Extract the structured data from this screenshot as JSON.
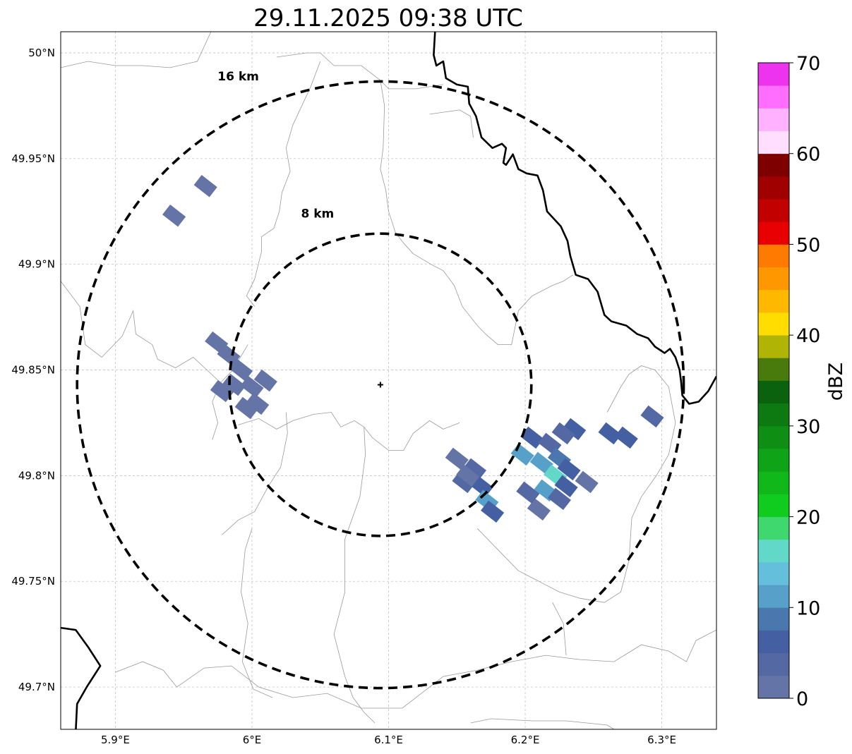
{
  "title": "29.11.2025 09:38 UTC",
  "map": {
    "lon_range": [
      5.86,
      6.34
    ],
    "lat_range": [
      49.68,
      50.01
    ],
    "x_ticks": [
      {
        "value": 5.9,
        "label": "5.9°E"
      },
      {
        "value": 6.0,
        "label": "6°E"
      },
      {
        "value": 6.1,
        "label": "6.1°E"
      },
      {
        "value": 6.2,
        "label": "6.2°E"
      },
      {
        "value": 6.3,
        "label": "6.3°E"
      }
    ],
    "y_ticks": [
      {
        "value": 50.0,
        "label": "50°N"
      },
      {
        "value": 49.95,
        "label": "49.95°N"
      },
      {
        "value": 49.9,
        "label": "49.9°N"
      },
      {
        "value": 49.85,
        "label": "49.85°N"
      },
      {
        "value": 49.8,
        "label": "49.8°N"
      },
      {
        "value": 49.75,
        "label": "49.75°N"
      },
      {
        "value": 49.7,
        "label": "49.7°N"
      }
    ],
    "grid": true,
    "radar_site": {
      "lon": 6.094,
      "lat": 49.843
    },
    "range_rings": [
      {
        "label": "8 km",
        "lon_radius": 0.1105,
        "lat_radius": 0.0715,
        "label_lon": 6.048,
        "label_lat": 49.922
      },
      {
        "label": "16 km",
        "lon_radius": 0.222,
        "lat_radius": 0.1435,
        "label_lon": 5.99,
        "label_lat": 49.987
      }
    ],
    "border_color": "#000000",
    "boundary_color": "#999999"
  },
  "colorbar": {
    "label": "dBZ",
    "min": 0,
    "max": 70,
    "step": 2.5,
    "ticks": [
      0,
      10,
      20,
      30,
      40,
      50,
      60,
      70
    ],
    "colors": [
      "#6474a6",
      "#5469a3",
      "#4460a2",
      "#4a78ae",
      "#57a0c9",
      "#63bfdc",
      "#62d8c9",
      "#3ed86e",
      "#10cc1e",
      "#10b81a",
      "#0fa417",
      "#0e8f14",
      "#0c7a11",
      "#0a620e",
      "#487b0b",
      "#b0b405",
      "#ffdd00",
      "#ffb800",
      "#ff9800",
      "#ff7a00",
      "#e80000",
      "#c20000",
      "#a00000",
      "#7f0000",
      "#ffdeff",
      "#ffb2ff",
      "#ff6eff",
      "#ee33ee"
    ]
  },
  "echoes": [
    {
      "lon": 5.966,
      "lat": 49.937,
      "dbz": 1
    },
    {
      "lon": 5.943,
      "lat": 49.923,
      "dbz": 1
    },
    {
      "lon": 5.974,
      "lat": 49.863,
      "dbz": 1
    },
    {
      "lon": 5.983,
      "lat": 49.857,
      "dbz": 1
    },
    {
      "lon": 5.992,
      "lat": 49.85,
      "dbz": 2
    },
    {
      "lon": 5.987,
      "lat": 49.843,
      "dbz": 1
    },
    {
      "lon": 6.0,
      "lat": 49.842,
      "dbz": 1
    },
    {
      "lon": 6.004,
      "lat": 49.834,
      "dbz": 1
    },
    {
      "lon": 5.978,
      "lat": 49.84,
      "dbz": 2
    },
    {
      "lon": 5.996,
      "lat": 49.832,
      "dbz": 1
    },
    {
      "lon": 6.01,
      "lat": 49.845,
      "dbz": 1
    },
    {
      "lon": 6.15,
      "lat": 49.808,
      "dbz": 2
    },
    {
      "lon": 6.163,
      "lat": 49.803,
      "dbz": 3
    },
    {
      "lon": 6.155,
      "lat": 49.797,
      "dbz": 4
    },
    {
      "lon": 6.168,
      "lat": 49.795,
      "dbz": 5
    },
    {
      "lon": 6.172,
      "lat": 49.788,
      "dbz": 10
    },
    {
      "lon": 6.176,
      "lat": 49.783,
      "dbz": 6
    },
    {
      "lon": 6.158,
      "lat": 49.8,
      "dbz": 1
    },
    {
      "lon": 6.205,
      "lat": 49.818,
      "dbz": 5
    },
    {
      "lon": 6.218,
      "lat": 49.815,
      "dbz": 4
    },
    {
      "lon": 6.225,
      "lat": 49.808,
      "dbz": 8
    },
    {
      "lon": 6.212,
      "lat": 49.806,
      "dbz": 12
    },
    {
      "lon": 6.222,
      "lat": 49.8,
      "dbz": 16
    },
    {
      "lon": 6.232,
      "lat": 49.803,
      "dbz": 6
    },
    {
      "lon": 6.215,
      "lat": 49.793,
      "dbz": 10
    },
    {
      "lon": 6.225,
      "lat": 49.789,
      "dbz": 4
    },
    {
      "lon": 6.21,
      "lat": 49.784,
      "dbz": 2
    },
    {
      "lon": 6.202,
      "lat": 49.792,
      "dbz": 3
    },
    {
      "lon": 6.236,
      "lat": 49.822,
      "dbz": 6
    },
    {
      "lon": 6.228,
      "lat": 49.82,
      "dbz": 3
    },
    {
      "lon": 6.245,
      "lat": 49.797,
      "dbz": 2
    },
    {
      "lon": 6.198,
      "lat": 49.81,
      "dbz": 11
    },
    {
      "lon": 6.23,
      "lat": 49.795,
      "dbz": 7
    },
    {
      "lon": 6.262,
      "lat": 49.82,
      "dbz": 7
    },
    {
      "lon": 6.274,
      "lat": 49.818,
      "dbz": 5
    },
    {
      "lon": 6.293,
      "lat": 49.828,
      "dbz": 4
    }
  ],
  "borders": [
    [
      [
        6.134,
        50.01
      ],
      [
        6.133,
        49.999
      ],
      [
        6.135,
        49.994
      ],
      [
        6.14,
        49.996
      ],
      [
        6.142,
        49.988
      ],
      [
        6.15,
        49.985
      ],
      [
        6.158,
        49.984
      ],
      [
        6.159,
        49.976
      ],
      [
        6.164,
        49.97
      ],
      [
        6.168,
        49.96
      ],
      [
        6.176,
        49.955
      ],
      [
        6.183,
        49.957
      ],
      [
        6.186,
        49.955
      ],
      [
        6.184,
        49.948
      ],
      [
        6.186,
        49.947
      ],
      [
        6.191,
        49.952
      ],
      [
        6.195,
        49.945
      ],
      [
        6.201,
        49.943
      ],
      [
        6.209,
        49.942
      ],
      [
        6.213,
        49.935
      ],
      [
        6.216,
        49.925
      ],
      [
        6.226,
        49.918
      ],
      [
        6.231,
        49.911
      ],
      [
        6.233,
        49.904
      ],
      [
        6.237,
        49.895
      ],
      [
        6.246,
        49.893
      ],
      [
        6.253,
        49.887
      ],
      [
        6.258,
        49.876
      ],
      [
        6.263,
        49.873
      ],
      [
        6.274,
        49.871
      ],
      [
        6.282,
        49.867
      ],
      [
        6.29,
        49.865
      ],
      [
        6.295,
        49.861
      ],
      [
        6.302,
        49.858
      ],
      [
        6.306,
        49.86
      ],
      [
        6.31,
        49.856
      ],
      [
        6.313,
        49.85
      ],
      [
        6.314,
        49.845
      ],
      [
        6.315,
        49.838
      ],
      [
        6.32,
        49.834
      ],
      [
        6.327,
        49.835
      ],
      [
        6.334,
        49.84
      ],
      [
        6.34,
        49.847
      ]
    ],
    [
      [
        5.86,
        49.728
      ],
      [
        5.871,
        49.727
      ],
      [
        5.88,
        49.719
      ],
      [
        5.889,
        49.71
      ],
      [
        5.879,
        49.7
      ],
      [
        5.872,
        49.692
      ],
      [
        5.871,
        49.679
      ]
    ]
  ],
  "boundaries": [
    [
      [
        5.86,
        49.993
      ],
      [
        5.88,
        49.996
      ],
      [
        5.9,
        49.994
      ],
      [
        5.92,
        49.994
      ],
      [
        5.94,
        49.993
      ],
      [
        5.96,
        49.996
      ],
      [
        5.97,
        50.01
      ]
    ],
    [
      [
        6.018,
        49.998
      ],
      [
        6.04,
        50.0
      ],
      [
        6.05,
        50.0
      ],
      [
        6.06,
        49.994
      ],
      [
        6.08,
        49.994
      ],
      [
        6.094,
        49.987
      ],
      [
        6.1,
        49.983
      ],
      [
        6.12,
        49.983
      ],
      [
        6.14,
        49.985
      ]
    ],
    [
      [
        6.05,
        49.996
      ],
      [
        6.043,
        49.984
      ],
      [
        6.03,
        49.966
      ],
      [
        6.025,
        49.955
      ],
      [
        6.028,
        49.944
      ],
      [
        6.022,
        49.934
      ],
      [
        6.02,
        49.925
      ],
      [
        6.016,
        49.917
      ],
      [
        6.007,
        49.913
      ],
      [
        6.007,
        49.906
      ],
      [
        6.002,
        49.893
      ],
      [
        5.996,
        49.885
      ],
      [
        6.002,
        49.88
      ]
    ],
    [
      [
        6.094,
        49.987
      ],
      [
        6.097,
        49.975
      ],
      [
        6.096,
        49.955
      ],
      [
        6.094,
        49.945
      ],
      [
        6.098,
        49.935
      ],
      [
        6.1,
        49.925
      ],
      [
        6.105,
        49.915
      ],
      [
        6.111,
        49.91
      ],
      [
        6.118,
        49.905
      ],
      [
        6.131,
        49.9
      ],
      [
        6.14,
        49.897
      ],
      [
        6.148,
        49.89
      ],
      [
        6.154,
        49.88
      ],
      [
        6.165,
        49.871
      ],
      [
        6.171,
        49.867
      ],
      [
        6.18,
        49.862
      ],
      [
        6.19,
        49.862
      ],
      [
        6.195,
        49.878
      ],
      [
        6.205,
        49.885
      ],
      [
        6.22,
        49.89
      ],
      [
        6.228,
        49.892
      ],
      [
        6.235,
        49.895
      ]
    ],
    [
      [
        6.13,
        49.971
      ],
      [
        6.152,
        49.973
      ],
      [
        6.16,
        49.97
      ],
      [
        6.162,
        49.96
      ]
    ],
    [
      [
        5.86,
        49.892
      ],
      [
        5.874,
        49.88
      ],
      [
        5.878,
        49.862
      ],
      [
        5.89,
        49.856
      ],
      [
        5.905,
        49.866
      ],
      [
        5.913,
        49.878
      ],
      [
        5.915,
        49.867
      ],
      [
        5.927,
        49.862
      ],
      [
        5.931,
        49.855
      ],
      [
        5.944,
        49.851
      ],
      [
        5.957,
        49.856
      ],
      [
        5.967,
        49.85
      ],
      [
        5.977,
        49.844
      ],
      [
        5.986,
        49.85
      ],
      [
        5.997,
        49.862
      ]
    ],
    [
      [
        5.977,
        49.844
      ],
      [
        5.971,
        49.835
      ],
      [
        5.975,
        49.825
      ],
      [
        5.971,
        49.817
      ]
    ],
    [
      [
        5.99,
        49.824
      ],
      [
        6.005,
        49.827
      ],
      [
        6.018,
        49.822
      ],
      [
        6.03,
        49.826
      ],
      [
        6.045,
        49.829
      ],
      [
        6.058,
        49.83
      ],
      [
        6.065,
        49.823
      ],
      [
        6.075,
        49.826
      ],
      [
        6.082,
        49.823
      ],
      [
        6.088,
        49.818
      ],
      [
        6.1,
        49.812
      ],
      [
        6.111,
        49.812
      ],
      [
        6.118,
        49.82
      ],
      [
        6.13,
        49.826
      ],
      [
        6.14,
        49.822
      ],
      [
        6.152,
        49.825
      ]
    ],
    [
      [
        6.025,
        49.83
      ],
      [
        6.026,
        49.82
      ],
      [
        6.021,
        49.804
      ],
      [
        6.012,
        49.795
      ],
      [
        6.002,
        49.783
      ],
      [
        5.99,
        49.779
      ],
      [
        5.978,
        49.772
      ]
    ],
    [
      [
        6.082,
        49.823
      ],
      [
        6.083,
        49.81
      ],
      [
        6.079,
        49.79
      ],
      [
        6.068,
        49.77
      ],
      [
        6.068,
        49.745
      ],
      [
        6.06,
        49.725
      ],
      [
        6.068,
        49.705
      ],
      [
        6.074,
        49.695
      ],
      [
        6.082,
        49.688
      ],
      [
        6.09,
        49.683
      ]
    ],
    [
      [
        6.0,
        49.775
      ],
      [
        5.995,
        49.765
      ],
      [
        5.992,
        49.745
      ],
      [
        5.997,
        49.73
      ],
      [
        5.993,
        49.712
      ],
      [
        6.001,
        49.699
      ],
      [
        6.015,
        49.695
      ]
    ],
    [
      [
        5.9,
        49.707
      ],
      [
        5.92,
        49.712
      ],
      [
        5.935,
        49.708
      ],
      [
        5.945,
        49.7
      ],
      [
        5.965,
        49.709
      ],
      [
        5.985,
        49.71
      ],
      [
        6.005,
        49.7
      ],
      [
        6.03,
        49.695
      ],
      [
        6.055,
        49.697
      ],
      [
        6.08,
        49.69
      ],
      [
        6.11,
        49.69
      ],
      [
        6.14,
        49.705
      ],
      [
        6.165,
        49.708
      ],
      [
        6.19,
        49.712
      ],
      [
        6.215,
        49.715
      ],
      [
        6.24,
        49.713
      ],
      [
        6.265,
        49.712
      ],
      [
        6.285,
        49.72
      ],
      [
        6.305,
        49.717
      ],
      [
        6.318,
        49.712
      ],
      [
        6.325,
        49.722
      ],
      [
        6.34,
        49.727
      ]
    ],
    [
      [
        6.26,
        49.83
      ],
      [
        6.27,
        49.842
      ],
      [
        6.276,
        49.848
      ],
      [
        6.285,
        49.852
      ],
      [
        6.295,
        49.85
      ],
      [
        6.305,
        49.842
      ],
      [
        6.31,
        49.825
      ],
      [
        6.305,
        49.81
      ],
      [
        6.296,
        49.8
      ],
      [
        6.285,
        49.79
      ],
      [
        6.278,
        49.78
      ],
      [
        6.276,
        49.76
      ],
      [
        6.27,
        49.745
      ],
      [
        6.258,
        49.74
      ],
      [
        6.24,
        49.742
      ],
      [
        6.225,
        49.745
      ],
      [
        6.21,
        49.75
      ],
      [
        6.195,
        49.755
      ],
      [
        6.18,
        49.765
      ],
      [
        6.165,
        49.775
      ]
    ],
    [
      [
        6.22,
        49.74
      ],
      [
        6.228,
        49.73
      ],
      [
        6.23,
        49.715
      ]
    ],
    [
      [
        6.16,
        49.683
      ],
      [
        6.175,
        49.685
      ],
      [
        6.205,
        49.684
      ],
      [
        6.23,
        49.684
      ],
      [
        6.26,
        49.682
      ],
      [
        6.265,
        49.68
      ]
    ]
  ]
}
